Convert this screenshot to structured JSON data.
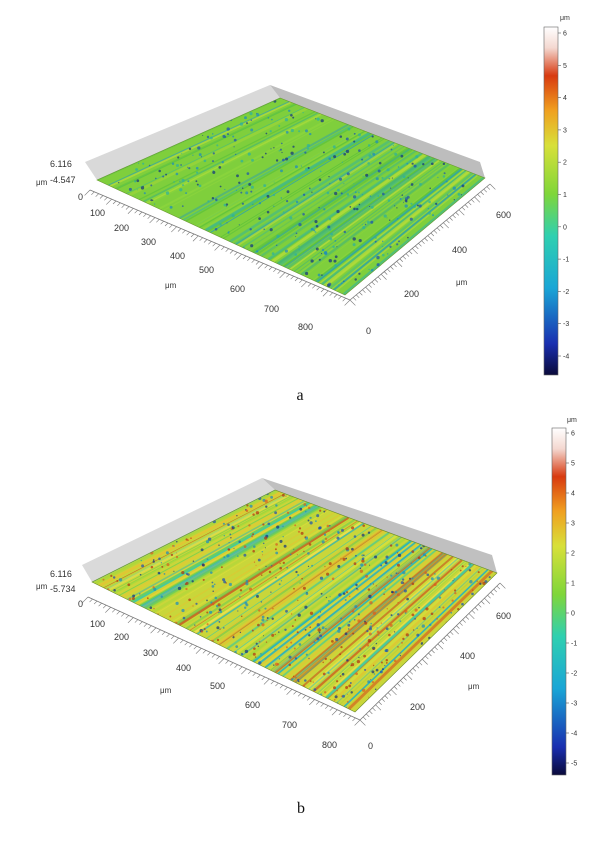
{
  "panels": [
    {
      "id": "a",
      "caption": "a",
      "z_unit": "μm",
      "z_max": "6.116",
      "z_min": "-4.547",
      "x_axis": {
        "unit": "μm",
        "ticks": [
          "100",
          "200",
          "300",
          "400",
          "500",
          "600",
          "700",
          "800"
        ]
      },
      "y_axis": {
        "unit": "μm",
        "ticks": [
          "0",
          "200",
          "400",
          "600"
        ]
      },
      "colorbar": {
        "unit": "μm",
        "ticks": [
          "6",
          "5",
          "4",
          "3",
          "2",
          "1",
          "0",
          "-1",
          "-2",
          "-3",
          "-4"
        ]
      }
    },
    {
      "id": "b",
      "caption": "b",
      "z_unit": "μm",
      "z_max": "6.116",
      "z_min": "-5.734",
      "x_axis": {
        "unit": "μm",
        "ticks": [
          "100",
          "200",
          "300",
          "400",
          "500",
          "600",
          "700",
          "800"
        ]
      },
      "y_axis": {
        "unit": "μm",
        "ticks": [
          "0",
          "200",
          "400",
          "600"
        ]
      },
      "colorbar": {
        "unit": "μm",
        "ticks": [
          "6",
          "5",
          "4",
          "3",
          "2",
          "1",
          "0",
          "-1",
          "-2",
          "-3",
          "-4",
          "-5"
        ]
      }
    }
  ],
  "colors": {
    "colormap": [
      "#0a0a3a",
      "#1a2fb0",
      "#1aa6d6",
      "#2fd0b0",
      "#7fd63a",
      "#d8e03a",
      "#f0a020",
      "#d83a10",
      "#f4d8d0",
      "#ffffff"
    ]
  }
}
